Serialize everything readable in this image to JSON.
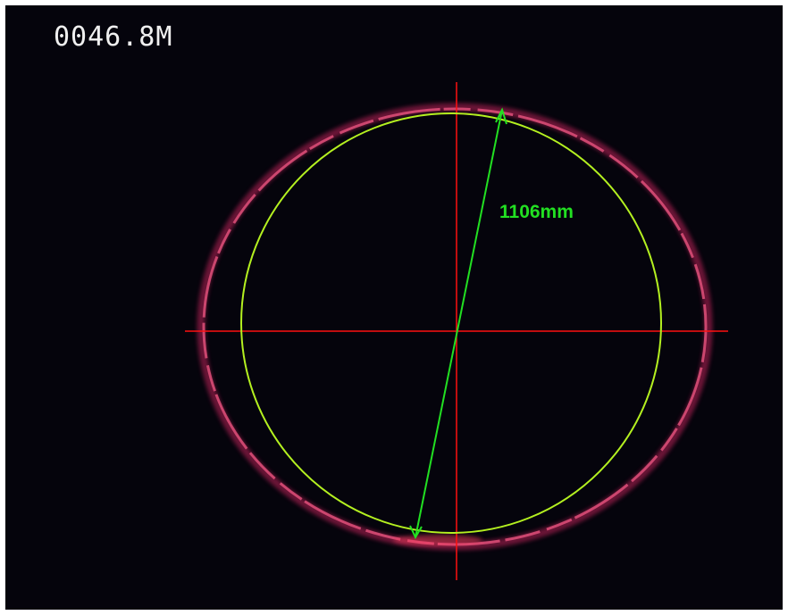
{
  "overlay": {
    "distance": "0046.8M",
    "measurement": "1106mm"
  }
}
